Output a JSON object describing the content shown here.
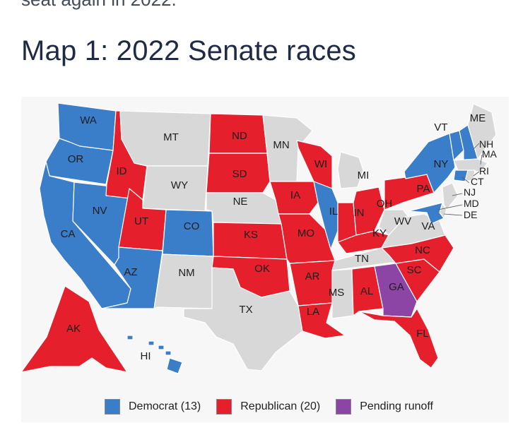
{
  "article": {
    "previous_text": "seat again in 2022.",
    "map_title": "Map 1: 2022 Senate races"
  },
  "colors": {
    "democrat": "#3a7dc9",
    "republican": "#e51f2c",
    "runoff": "#8c44a5",
    "no_race": "#d8d8d8",
    "border": "#ffffff"
  },
  "legend": [
    {
      "key": "democrat",
      "label": "Democrat (13)",
      "color": "#3a7dc9"
    },
    {
      "key": "republican",
      "label": "Republican (20)",
      "color": "#e51f2c"
    },
    {
      "key": "runoff",
      "label": "Pending runoff",
      "color": "#8c44a5"
    }
  ],
  "states": {
    "WA": "democrat",
    "OR": "democrat",
    "CA": "democrat",
    "NV": "democrat",
    "ID": "republican",
    "MT": "no_race",
    "WY": "no_race",
    "UT": "republican",
    "AZ": "democrat",
    "CO": "democrat",
    "NM": "no_race",
    "ND": "republican",
    "SD": "republican",
    "NE": "no_race",
    "KS": "republican",
    "OK": "republican",
    "TX": "no_race",
    "MN": "no_race",
    "IA": "republican",
    "MO": "republican",
    "AR": "republican",
    "LA": "republican",
    "WI": "republican",
    "IL": "democrat",
    "MI": "no_race",
    "IN": "republican",
    "OH": "republican",
    "KY": "republican",
    "TN": "no_race",
    "MS": "no_race",
    "AL": "republican",
    "GA": "runoff",
    "FL": "republican",
    "SC": "republican",
    "NC": "republican",
    "VA": "no_race",
    "WV": "no_race",
    "PA": "republican",
    "NY": "democrat",
    "VT": "democrat",
    "NH": "democrat",
    "ME": "no_race",
    "MA": "no_race",
    "CT": "democrat",
    "RI": "no_race",
    "NJ": "no_race",
    "DE": "no_race",
    "MD": "democrat",
    "AK": "republican",
    "HI": "democrat"
  },
  "state_labels": {
    "WA": "WA",
    "OR": "OR",
    "CA": "CA",
    "NV": "NV",
    "ID": "ID",
    "MT": "MT",
    "WY": "WY",
    "UT": "UT",
    "AZ": "AZ",
    "CO": "CO",
    "NM": "NM",
    "ND": "ND",
    "SD": "SD",
    "NE": "NE",
    "KS": "KS",
    "OK": "OK",
    "TX": "TX",
    "MN": "MN",
    "IA": "IA",
    "MO": "MO",
    "AR": "AR",
    "LA": "LA",
    "WI": "WI",
    "IL": "IL",
    "MI": "MI",
    "IN": "IN",
    "OH": "OH",
    "KY": "KY",
    "TN": "TN",
    "MS": "MS",
    "AL": "AL",
    "GA": "GA",
    "FL": "FL",
    "SC": "SC",
    "NC": "NC",
    "VA": "VA",
    "WV": "WV",
    "PA": "PA",
    "NY": "NY",
    "VT": "VT",
    "NH": "NH",
    "ME": "ME",
    "MA": "MA",
    "CT": "CT",
    "RI": "RI",
    "NJ": "NJ",
    "DE": "DE",
    "MD": "MD",
    "AK": "AK",
    "HI": "HI"
  }
}
